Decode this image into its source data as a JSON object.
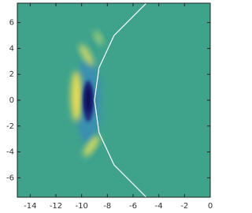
{
  "chart_data": {
    "type": "line",
    "xlim": [
      -15,
      0
    ],
    "ylim": [
      -7.5,
      7.5
    ],
    "xticks": [
      -14,
      -12,
      -10,
      -8,
      -6,
      -4,
      -2,
      0
    ],
    "yticks": [
      -6,
      -4,
      -2,
      0,
      2,
      4,
      6
    ],
    "background": "#3fa38c",
    "series": [
      {
        "color": "#ffffff",
        "x": [
          -4.97,
          -7.48,
          -8.65,
          -9,
          -8.65,
          -7.48,
          -4.97
        ],
        "y": [
          -7.5,
          -5,
          -2.5,
          0,
          2.5,
          5,
          7.5
        ]
      }
    ]
  }
}
